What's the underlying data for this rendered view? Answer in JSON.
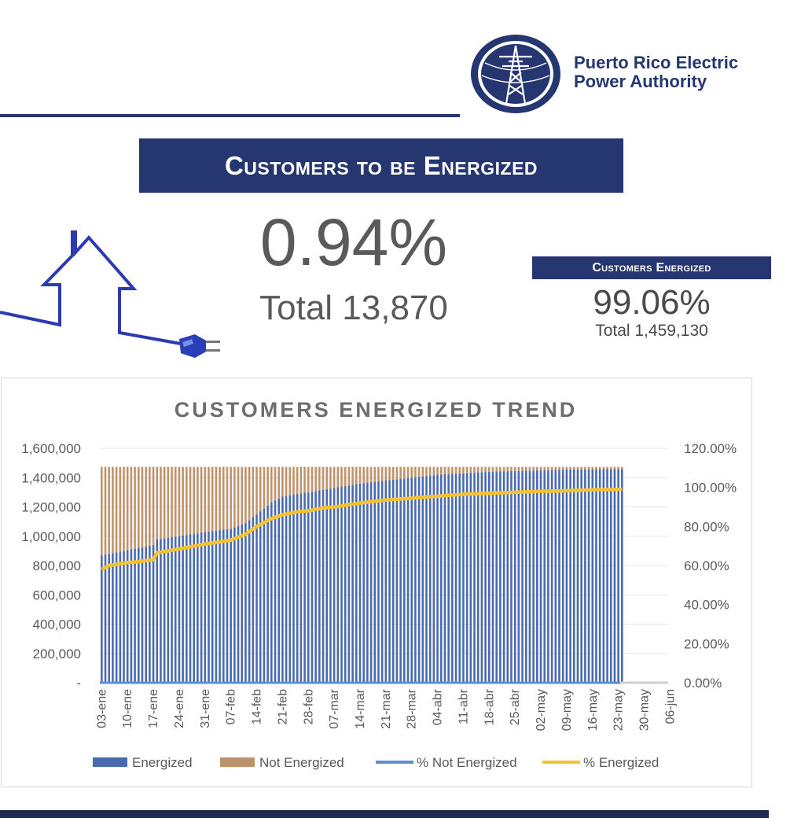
{
  "header": {
    "org_line1": "Puerto Rico Electric",
    "org_line2": "Power Authority",
    "logo_icon": "transmission-tower-icon"
  },
  "to_be_energized": {
    "title": "Customers to be Energized",
    "percent": "0.94%",
    "total": "Total 13,870",
    "icon": "house-plug-icon"
  },
  "energized": {
    "title": "Customers Energized",
    "percent": "99.06%",
    "total": "Total  1,459,130"
  },
  "colors": {
    "brand": "#253670",
    "energized": "#4a6aae",
    "not_energized": "#c0926a",
    "pct_energized": "#f5c232",
    "pct_not_energized": "#5b8fd8"
  },
  "chart_data": {
    "type": "bar",
    "stacked": true,
    "title": "CUSTOMERS ENERGIZED TREND",
    "xlabel": "",
    "ylabel": "",
    "x_tick_labels": [
      "03-ene",
      "10-ene",
      "17-ene",
      "24-ene",
      "31-ene",
      "07-feb",
      "14-feb",
      "21-feb",
      "28-feb",
      "07-mar",
      "14-mar",
      "21-mar",
      "28-mar",
      "04-abr",
      "11-abr",
      "18-abr",
      "25-abr",
      "02-may",
      "09-may",
      "16-may",
      "23-may",
      "30-may",
      "06-jun"
    ],
    "x_range_days": [
      0,
      154
    ],
    "data_end_day": 141,
    "ylim": [
      0,
      1600000
    ],
    "y_ticks": [
      0,
      200000,
      400000,
      600000,
      800000,
      1000000,
      1200000,
      1400000,
      1600000
    ],
    "y_tick_labels": [
      "-",
      "200,000",
      "400,000",
      "600,000",
      "800,000",
      "1,000,000",
      "1,200,000",
      "1,400,000",
      "1,600,000"
    ],
    "y2lim": [
      0,
      1.2
    ],
    "y2_ticks": [
      0,
      0.2,
      0.4,
      0.6,
      0.8,
      1.0,
      1.2
    ],
    "y2_tick_labels": [
      "0.00%",
      "20.00%",
      "40.00%",
      "60.00%",
      "80.00%",
      "100.00%",
      "120.00%"
    ],
    "grid": true,
    "legend_position": "bottom",
    "total_customers": 1473000,
    "series": [
      {
        "name": "Energized",
        "type": "bar",
        "axis": "left",
        "points": [
          [
            0,
            870000
          ],
          [
            4,
            890000
          ],
          [
            10,
            920000
          ],
          [
            14,
            940000
          ],
          [
            15,
            980000
          ],
          [
            21,
            1000000
          ],
          [
            28,
            1030000
          ],
          [
            35,
            1050000
          ],
          [
            39,
            1090000
          ],
          [
            42,
            1150000
          ],
          [
            46,
            1230000
          ],
          [
            49,
            1270000
          ],
          [
            53,
            1290000
          ],
          [
            56,
            1300000
          ],
          [
            63,
            1330000
          ],
          [
            70,
            1360000
          ],
          [
            77,
            1380000
          ],
          [
            84,
            1400000
          ],
          [
            91,
            1420000
          ],
          [
            98,
            1430000
          ],
          [
            105,
            1440000
          ],
          [
            112,
            1445000
          ],
          [
            119,
            1450000
          ],
          [
            126,
            1455000
          ],
          [
            133,
            1457000
          ],
          [
            141,
            1459130
          ]
        ]
      },
      {
        "name": "Not Energized",
        "type": "bar",
        "axis": "left",
        "derived": "total_customers minus Energized"
      },
      {
        "name": "% Not Energized",
        "type": "line",
        "axis": "right",
        "points": [
          [
            0,
            0.0
          ],
          [
            141,
            0.0
          ]
        ]
      },
      {
        "name": "% Energized",
        "type": "line",
        "axis": "right",
        "points": [
          [
            0,
            0.58
          ],
          [
            2,
            0.6
          ],
          [
            7,
            0.615
          ],
          [
            10,
            0.62
          ],
          [
            14,
            0.63
          ],
          [
            15,
            0.665
          ],
          [
            21,
            0.685
          ],
          [
            28,
            0.71
          ],
          [
            35,
            0.73
          ],
          [
            39,
            0.76
          ],
          [
            42,
            0.8
          ],
          [
            46,
            0.84
          ],
          [
            49,
            0.86
          ],
          [
            53,
            0.875
          ],
          [
            56,
            0.88
          ],
          [
            60,
            0.895
          ],
          [
            63,
            0.9
          ],
          [
            70,
            0.92
          ],
          [
            77,
            0.935
          ],
          [
            84,
            0.945
          ],
          [
            91,
            0.955
          ],
          [
            98,
            0.965
          ],
          [
            105,
            0.97
          ],
          [
            112,
            0.975
          ],
          [
            119,
            0.98
          ],
          [
            126,
            0.983
          ],
          [
            133,
            0.988
          ],
          [
            141,
            0.99
          ]
        ]
      }
    ]
  }
}
